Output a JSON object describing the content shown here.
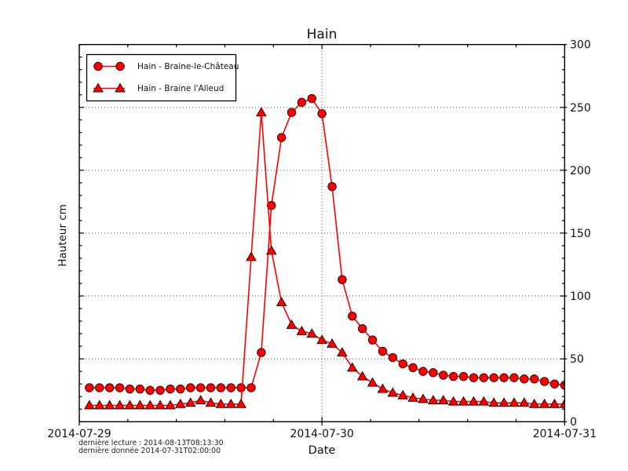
{
  "figure": {
    "title": "Hain",
    "footer": {
      "line1": "dernière lecture : 2014-08-13T08:13:30",
      "line2": "dernière donnée  2014-07-31T02:00:00"
    }
  },
  "chart_data": {
    "type": "line",
    "title": "Hain",
    "xlabel": "Date",
    "ylabel": "Hauteur cm",
    "x_unit": "hours since 2014-07-29 00:00",
    "xlim": [
      0,
      48
    ],
    "ylim": [
      0,
      300
    ],
    "x_major_ticks": [
      {
        "t": 0,
        "label": "2014-07-29"
      },
      {
        "t": 24,
        "label": "2014-07-30"
      },
      {
        "t": 48,
        "label": "2014-07-31"
      }
    ],
    "x_minor_ticks": [
      4.8,
      9.6,
      14.4,
      19.2,
      28.8,
      33.6,
      38.4,
      43.2
    ],
    "y_major_ticks": [
      0,
      50,
      100,
      150,
      200,
      250,
      300
    ],
    "y_minor_step": 10,
    "grid": "dotted at major ticks (horizontal 50-250, vertical at 2014-07-30)",
    "legend_position": "upper left",
    "line_color": "#ff0000",
    "marker_edge_color": "#3a0000",
    "series": [
      {
        "name": "Hain - Braine-le-Château",
        "marker": "circle",
        "color": "#ff0000",
        "points": [
          [
            1,
            27
          ],
          [
            2,
            27
          ],
          [
            3,
            27
          ],
          [
            4,
            27
          ],
          [
            5,
            26
          ],
          [
            6,
            26
          ],
          [
            7,
            25
          ],
          [
            8,
            25
          ],
          [
            9,
            26
          ],
          [
            10,
            26
          ],
          [
            11,
            27
          ],
          [
            12,
            27
          ],
          [
            13,
            27
          ],
          [
            14,
            27
          ],
          [
            15,
            27
          ],
          [
            16,
            27
          ],
          [
            17,
            27
          ],
          [
            18,
            55
          ],
          [
            19,
            172
          ],
          [
            20,
            226
          ],
          [
            21,
            246
          ],
          [
            22,
            254
          ],
          [
            23,
            257
          ],
          [
            24,
            245
          ],
          [
            25,
            187
          ],
          [
            26,
            113
          ],
          [
            27,
            84
          ],
          [
            28,
            74
          ],
          [
            29,
            65
          ],
          [
            30,
            56
          ],
          [
            31,
            51
          ],
          [
            32,
            46
          ],
          [
            33,
            43
          ],
          [
            34,
            40
          ],
          [
            35,
            39
          ],
          [
            36,
            37
          ],
          [
            37,
            36
          ],
          [
            38,
            36
          ],
          [
            39,
            35
          ],
          [
            40,
            35
          ],
          [
            41,
            35
          ],
          [
            42,
            35
          ],
          [
            43,
            35
          ],
          [
            44,
            34
          ],
          [
            45,
            34
          ],
          [
            46,
            32
          ],
          [
            47,
            30
          ],
          [
            48,
            29
          ]
        ]
      },
      {
        "name": "Hain - Braine l'Alleud",
        "marker": "triangle",
        "color": "#ff0000",
        "points": [
          [
            1,
            13
          ],
          [
            2,
            13
          ],
          [
            3,
            13
          ],
          [
            4,
            13
          ],
          [
            5,
            13
          ],
          [
            6,
            13
          ],
          [
            7,
            13
          ],
          [
            8,
            13
          ],
          [
            9,
            13
          ],
          [
            10,
            14
          ],
          [
            11,
            15
          ],
          [
            12,
            17
          ],
          [
            13,
            15
          ],
          [
            14,
            14
          ],
          [
            15,
            14
          ],
          [
            16,
            14
          ],
          [
            17,
            131
          ],
          [
            18,
            246
          ],
          [
            19,
            136
          ],
          [
            20,
            95
          ],
          [
            21,
            77
          ],
          [
            22,
            72
          ],
          [
            23,
            70
          ],
          [
            24,
            65
          ],
          [
            25,
            62
          ],
          [
            26,
            55
          ],
          [
            27,
            43
          ],
          [
            28,
            36
          ],
          [
            29,
            31
          ],
          [
            30,
            26
          ],
          [
            31,
            23
          ],
          [
            32,
            21
          ],
          [
            33,
            19
          ],
          [
            34,
            18
          ],
          [
            35,
            17
          ],
          [
            36,
            17
          ],
          [
            37,
            16
          ],
          [
            38,
            16
          ],
          [
            39,
            16
          ],
          [
            40,
            16
          ],
          [
            41,
            15
          ],
          [
            42,
            15
          ],
          [
            43,
            15
          ],
          [
            44,
            15
          ],
          [
            45,
            14
          ],
          [
            46,
            14
          ],
          [
            47,
            14
          ],
          [
            48,
            14
          ]
        ]
      }
    ]
  }
}
